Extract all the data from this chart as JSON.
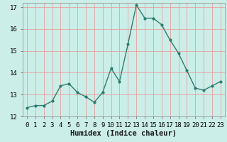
{
  "x": [
    0,
    1,
    2,
    3,
    4,
    5,
    6,
    7,
    8,
    9,
    10,
    11,
    12,
    13,
    14,
    15,
    16,
    17,
    18,
    19,
    20,
    21,
    22,
    23
  ],
  "y": [
    12.4,
    12.5,
    12.5,
    12.7,
    13.4,
    13.5,
    13.1,
    12.9,
    12.65,
    13.1,
    14.2,
    13.6,
    15.3,
    17.1,
    16.5,
    16.5,
    16.2,
    15.5,
    14.9,
    14.1,
    13.3,
    13.2,
    13.4,
    13.6
  ],
  "line_color": "#2d7d6e",
  "marker": "o",
  "markersize": 2.0,
  "linewidth": 1.0,
  "xlabel": "Humidex (Indice chaleur)",
  "xlim": [
    -0.5,
    23.5
  ],
  "ylim": [
    12.0,
    17.2
  ],
  "yticks": [
    12,
    13,
    14,
    15,
    16,
    17
  ],
  "xticks": [
    0,
    1,
    2,
    3,
    4,
    5,
    6,
    7,
    8,
    9,
    10,
    11,
    12,
    13,
    14,
    15,
    16,
    17,
    18,
    19,
    20,
    21,
    22,
    23
  ],
  "bg_color": "#cceee8",
  "grid_color": "#e8a0a0",
  "xlabel_fontsize": 7.5,
  "tick_fontsize": 6.5
}
